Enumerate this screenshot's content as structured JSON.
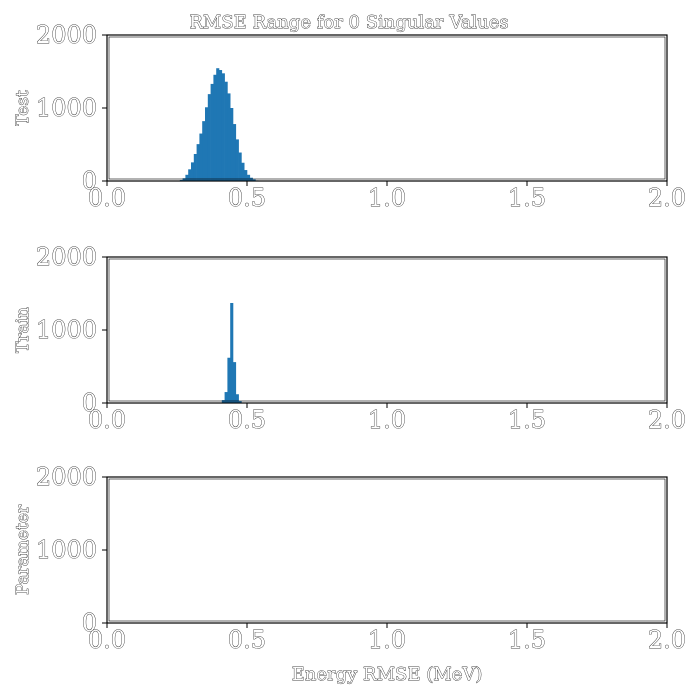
{
  "chart_data": {
    "type": "histogram",
    "title": "RMSE Range for 0 Singular Values",
    "xlabel": "Energy RMSE (MeV)",
    "xlim": [
      0.0,
      2.0
    ],
    "ylim": [
      0,
      2000
    ],
    "x_ticks": [
      "0.0",
      "0.5",
      "1.0",
      "1.5",
      "2.0"
    ],
    "y_ticks": [
      "0",
      "1000",
      "2000"
    ],
    "bar_color": "#1f77b4",
    "panels": [
      {
        "ylabel": "Test",
        "bins": [
          [
            0.25,
            5
          ],
          [
            0.26,
            14
          ],
          [
            0.27,
            38
          ],
          [
            0.28,
            85
          ],
          [
            0.29,
            160
          ],
          [
            0.3,
            255
          ],
          [
            0.31,
            370
          ],
          [
            0.32,
            505
          ],
          [
            0.33,
            650
          ],
          [
            0.34,
            820
          ],
          [
            0.35,
            1010
          ],
          [
            0.36,
            1190
          ],
          [
            0.37,
            1330
          ],
          [
            0.38,
            1455
          ],
          [
            0.39,
            1545
          ],
          [
            0.4,
            1520
          ],
          [
            0.41,
            1475
          ],
          [
            0.42,
            1360
          ],
          [
            0.43,
            1200
          ],
          [
            0.44,
            1000
          ],
          [
            0.45,
            780
          ],
          [
            0.46,
            570
          ],
          [
            0.47,
            390
          ],
          [
            0.48,
            250
          ],
          [
            0.49,
            150
          ],
          [
            0.5,
            85
          ],
          [
            0.51,
            45
          ],
          [
            0.52,
            20
          ],
          [
            0.53,
            8
          ]
        ]
      },
      {
        "ylabel": "Train",
        "bins": [
          [
            0.41,
            40
          ],
          [
            0.42,
            150
          ],
          [
            0.43,
            620
          ],
          [
            0.44,
            1370
          ],
          [
            0.45,
            560
          ],
          [
            0.46,
            120
          ],
          [
            0.47,
            25
          ]
        ]
      },
      {
        "ylabel": "Parameter",
        "bins": []
      }
    ]
  }
}
